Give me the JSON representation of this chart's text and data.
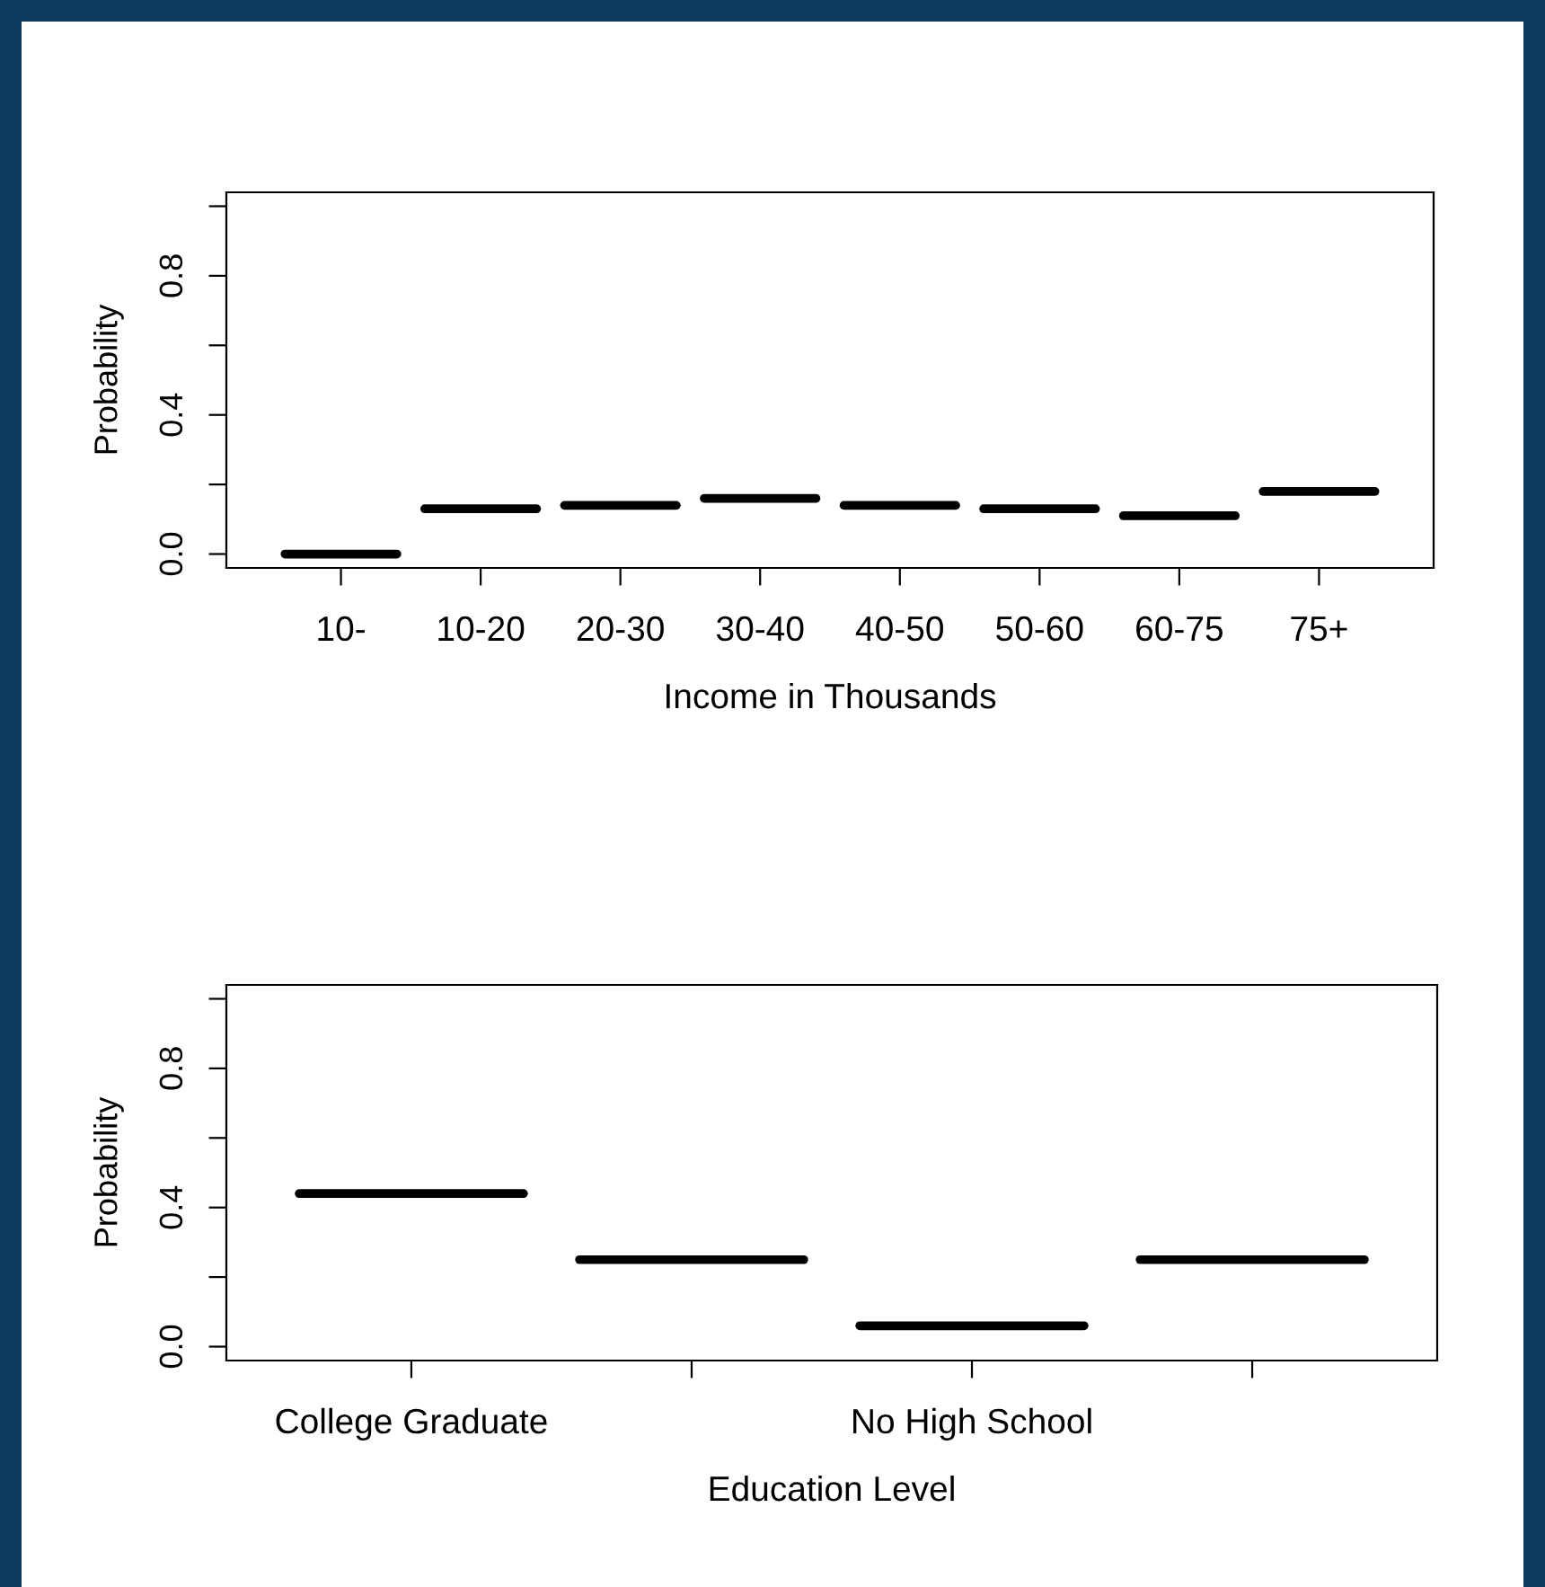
{
  "chart_data": [
    {
      "type": "box",
      "categories": [
        "10-",
        "10-20",
        "20-30",
        "30-40",
        "40-50",
        "50-60",
        "60-75",
        "75+"
      ],
      "xlabel": "Income in Thousands",
      "ylabel": "Probability",
      "ylim": [
        -0.04,
        1.04
      ],
      "yticks": [
        {
          "value": 0,
          "label": "0.0"
        },
        {
          "value": 0.2,
          "label": null
        },
        {
          "value": 0.4,
          "label": "0.4"
        },
        {
          "value": 0.6,
          "label": null
        },
        {
          "value": 0.8,
          "label": "0.8"
        },
        {
          "value": 1.0,
          "label": null
        }
      ],
      "boxes": [
        {
          "low": 0.0,
          "q1": 0.0,
          "median": 0.0,
          "q3": 0.0,
          "high": 0.0
        },
        {
          "low": 0.13,
          "q1": 0.13,
          "median": 0.13,
          "q3": 0.13,
          "high": 0.13
        },
        {
          "low": 0.14,
          "q1": 0.14,
          "median": 0.14,
          "q3": 0.14,
          "high": 0.14
        },
        {
          "low": 0.16,
          "q1": 0.16,
          "median": 0.16,
          "q3": 0.16,
          "high": 0.16
        },
        {
          "low": 0.14,
          "q1": 0.14,
          "median": 0.14,
          "q3": 0.14,
          "high": 0.14
        },
        {
          "low": 0.13,
          "q1": 0.13,
          "median": 0.13,
          "q3": 0.13,
          "high": 0.13
        },
        {
          "low": 0.11,
          "q1": 0.11,
          "median": 0.11,
          "q3": 0.11,
          "high": 0.11
        },
        {
          "low": 0.18,
          "q1": 0.18,
          "median": 0.18,
          "q3": 0.18,
          "high": 0.18
        }
      ]
    },
    {
      "type": "box",
      "categories": [
        "College Graduate",
        null,
        "No High School",
        null
      ],
      "xlabel": "Education Level",
      "ylabel": "Probability",
      "ylim": [
        -0.04,
        1.04
      ],
      "yticks": [
        {
          "value": 0,
          "label": "0.0"
        },
        {
          "value": 0.2,
          "label": null
        },
        {
          "value": 0.4,
          "label": "0.4"
        },
        {
          "value": 0.6,
          "label": null
        },
        {
          "value": 0.8,
          "label": "0.8"
        },
        {
          "value": 1.0,
          "label": null
        }
      ],
      "boxes": [
        {
          "low": 0.44,
          "q1": 0.44,
          "median": 0.44,
          "q3": 0.44,
          "high": 0.44
        },
        {
          "low": 0.25,
          "q1": 0.25,
          "median": 0.25,
          "q3": 0.25,
          "high": 0.25
        },
        {
          "low": 0.06,
          "q1": 0.06,
          "median": 0.06,
          "q3": 0.06,
          "high": 0.06
        },
        {
          "low": 0.25,
          "q1": 0.25,
          "median": 0.25,
          "q3": 0.25,
          "high": 0.25
        }
      ]
    }
  ]
}
